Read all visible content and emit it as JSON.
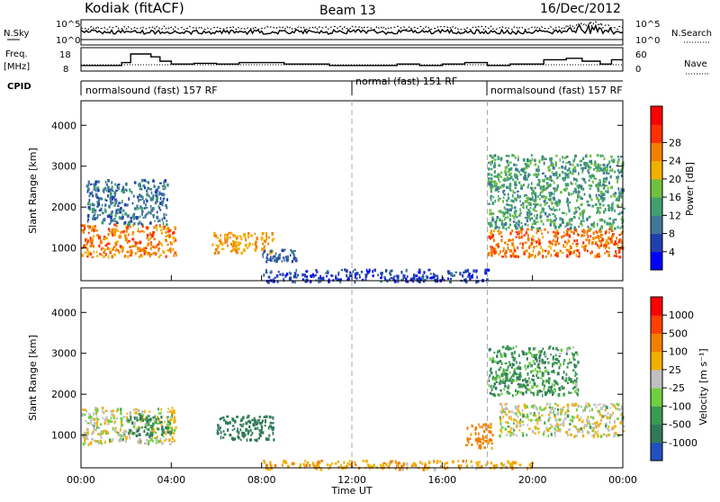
{
  "header": {
    "station": "Kodiak (fitACF)",
    "beam": "Beam 13",
    "date": "16/Dec/2012"
  },
  "noise_panel": {
    "left_label": "N.Sky",
    "right_label": "N.Search",
    "left_ticks": [
      "10^5",
      "10^0"
    ],
    "right_ticks": [
      "10^5",
      "10^0"
    ]
  },
  "freq_panel": {
    "left_label_1": "Freq.",
    "left_label_2": "[MHz]",
    "right_label": "Nave",
    "left_ticks": [
      "18",
      "8"
    ],
    "right_ticks": [
      "60",
      "0"
    ],
    "freq_mhz_steps": [
      {
        "t": 0.0,
        "f": 10
      },
      {
        "t": 1.8,
        "f": 12
      },
      {
        "t": 2.2,
        "f": 18
      },
      {
        "t": 3.1,
        "f": 16
      },
      {
        "t": 3.5,
        "f": 13
      },
      {
        "t": 4.0,
        "f": 11
      },
      {
        "t": 5.0,
        "f": 11.5
      },
      {
        "t": 6.0,
        "f": 11
      },
      {
        "t": 7.0,
        "f": 12
      },
      {
        "t": 8.0,
        "f": 12
      },
      {
        "t": 9.0,
        "f": 11
      },
      {
        "t": 10.0,
        "f": 11
      },
      {
        "t": 11.0,
        "f": 10
      },
      {
        "t": 12.0,
        "f": 10
      },
      {
        "t": 13.0,
        "f": 10
      },
      {
        "t": 14.0,
        "f": 11
      },
      {
        "t": 15.0,
        "f": 10
      },
      {
        "t": 16.0,
        "f": 11
      },
      {
        "t": 17.0,
        "f": 12
      },
      {
        "t": 18.0,
        "f": 10
      },
      {
        "t": 19.0,
        "f": 11
      },
      {
        "t": 20.0,
        "f": 11
      },
      {
        "t": 20.5,
        "f": 14
      },
      {
        "t": 21.5,
        "f": 15
      },
      {
        "t": 22.2,
        "f": 13
      },
      {
        "t": 23.0,
        "f": 11
      },
      {
        "t": 23.5,
        "f": 14
      },
      {
        "t": 24.0,
        "f": 14
      }
    ]
  },
  "cpid": {
    "label": "CPID",
    "segments": [
      {
        "start": 0,
        "end": 12,
        "name": "normalsound (fast) 157 RF"
      },
      {
        "start": 12,
        "end": 18,
        "name": "normal (fast) 151 RF"
      },
      {
        "start": 18,
        "end": 24,
        "name": "normalsound (fast) 157 RF"
      }
    ]
  },
  "chart_data": [
    {
      "type": "heatmap",
      "panel": "power",
      "ylabel": "Slant Range [km]",
      "yticks": [
        1000,
        2000,
        3000,
        4000
      ],
      "ylim": [
        200,
        4600
      ],
      "xlim": [
        0,
        24
      ],
      "colorbar": {
        "label": "Power [dB]",
        "ticks": [
          "4",
          "8",
          "12",
          "16",
          "20",
          "24",
          "28"
        ],
        "colors": [
          "#0000ff",
          "#2040b0",
          "#407898",
          "#40a070",
          "#70c040",
          "#f0b000",
          "#f08000",
          "#ff3000",
          "#ff0000"
        ]
      },
      "regions": [
        {
          "t0": 0.0,
          "t1": 4.2,
          "r0": 800,
          "r1": 1600,
          "power_db": 26
        },
        {
          "t0": 0.2,
          "t1": 3.8,
          "r0": 1600,
          "r1": 2700,
          "power_db": 10
        },
        {
          "t0": 5.8,
          "t1": 8.5,
          "r0": 900,
          "r1": 1400,
          "power_db": 24
        },
        {
          "t0": 8.0,
          "t1": 9.5,
          "r0": 700,
          "r1": 1000,
          "power_db": 8
        },
        {
          "t0": 18.0,
          "t1": 24.0,
          "r0": 800,
          "r1": 1500,
          "power_db": 27
        },
        {
          "t0": 18.0,
          "t1": 24.0,
          "r0": 1500,
          "r1": 3300,
          "power_db": 14
        },
        {
          "t0": 8.0,
          "t1": 18.0,
          "r0": 200,
          "r1": 500,
          "power_db": 6
        }
      ]
    },
    {
      "type": "heatmap",
      "panel": "velocity",
      "ylabel": "Slant Range [km]",
      "yticks": [
        1000,
        2000,
        3000,
        4000
      ],
      "ylim": [
        200,
        4600
      ],
      "xlim": [
        0,
        24
      ],
      "xticks": [
        "00:00",
        "04:00",
        "08:00",
        "12:00",
        "16:00",
        "20:00",
        "00:00"
      ],
      "xlabel": "Time UT",
      "colorbar": {
        "label": "Velocity [m s⁻¹]",
        "ticks": [
          "1000",
          "500",
          "100",
          "25",
          "-25",
          "-100",
          "-500",
          "-1000"
        ],
        "colors": [
          "#2050c0",
          "#2f7a5a",
          "#3a9a50",
          "#70d040",
          "#c0c0c0",
          "#f0b000",
          "#f08000",
          "#ff4000",
          "#ff0000"
        ]
      },
      "regions": [
        {
          "t0": 0.0,
          "t1": 4.2,
          "r0": 800,
          "r1": 1700,
          "velocity": 0
        },
        {
          "t0": 2.0,
          "t1": 4.0,
          "r0": 1000,
          "r1": 1500,
          "velocity": 100
        },
        {
          "t0": 6.0,
          "t1": 8.5,
          "r0": 900,
          "r1": 1500,
          "velocity": 300
        },
        {
          "t0": 17.0,
          "t1": 18.2,
          "r0": 700,
          "r1": 1300,
          "velocity": -150
        },
        {
          "t0": 18.5,
          "t1": 24.0,
          "r0": 1000,
          "r1": 1800,
          "velocity": 0
        },
        {
          "t0": 18.0,
          "t1": 22.0,
          "r0": 2000,
          "r1": 3200,
          "velocity": 80
        },
        {
          "t0": 8.0,
          "t1": 20.0,
          "r0": 200,
          "r1": 400,
          "velocity": -80
        }
      ]
    }
  ]
}
